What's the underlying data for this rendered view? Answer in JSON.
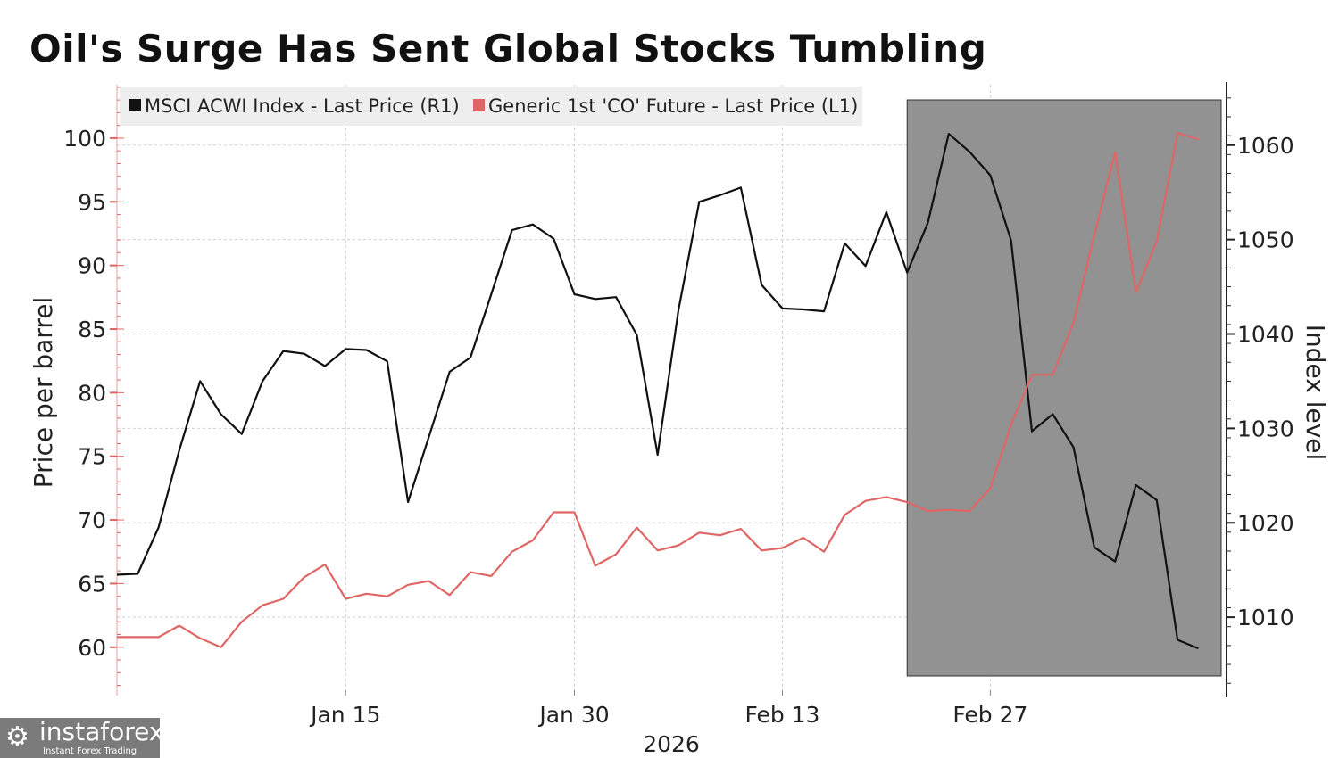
{
  "title": "Oil's Surge Has Sent Global Stocks Tumbling",
  "watermark": {
    "name": "instaforex",
    "tagline": "Instant Forex Trading"
  },
  "chart_data": {
    "type": "line",
    "title": "Oil's Surge Has Sent Global Stocks Tumbling",
    "xlabel": "2026",
    "ylabel_left": "Price per barrel",
    "ylabel_right": "Index level",
    "x_tick_labels": [
      {
        "index": 11,
        "label": "Jan 15"
      },
      {
        "index": 22,
        "label": "Jan 30"
      },
      {
        "index": 32,
        "label": "Feb 13"
      },
      {
        "index": 42,
        "label": "Feb 27"
      }
    ],
    "left_ticks": [
      60,
      65,
      70,
      75,
      80,
      85,
      90,
      95,
      100
    ],
    "right_ticks": [
      1010,
      1020,
      1030,
      1040,
      1050,
      1060
    ],
    "left_range": [
      56.2,
      104.2
    ],
    "right_range": [
      1001.7,
      1066.4
    ],
    "x_range": [
      0,
      53.1
    ],
    "shaded_from_index": 38,
    "legend_position": "top-left",
    "series": [
      {
        "name": "MSCI ACWI Index - Last Price (R1)",
        "axis": "right",
        "color": "#111111",
        "values": [
          1014.5,
          1014.6,
          1019.5,
          1027.7,
          1035.0,
          1031.5,
          1029.4,
          1035.0,
          1038.2,
          1037.9,
          1036.6,
          1038.4,
          1038.3,
          1037.1,
          1022.2,
          1029.1,
          1036.0,
          1037.5,
          1044.2,
          1051.0,
          1051.6,
          1050.1,
          1044.2,
          1043.7,
          1043.9,
          1039.9,
          1027.2,
          1042.5,
          1054.0,
          1054.7,
          1055.5,
          1045.2,
          1042.7,
          1042.6,
          1042.4,
          1049.6,
          1047.2,
          1052.9,
          1046.5,
          1051.8,
          1061.2,
          1059.3,
          1056.8,
          1049.9,
          1029.7,
          1031.5,
          1028.0,
          1017.4,
          1015.9,
          1024.0,
          1022.4,
          1007.6,
          1006.7
        ]
      },
      {
        "name": "Generic 1st 'CO' Future - Last Price (L1)",
        "axis": "left",
        "color": "#e06666",
        "values": [
          60.8,
          60.8,
          60.8,
          61.7,
          60.7,
          60.0,
          62.0,
          63.3,
          63.8,
          65.5,
          66.5,
          63.8,
          64.2,
          64.0,
          64.9,
          65.2,
          64.1,
          65.9,
          65.6,
          67.5,
          68.4,
          70.6,
          70.6,
          66.4,
          67.3,
          69.4,
          67.6,
          68.0,
          69.0,
          68.8,
          69.3,
          67.6,
          67.8,
          68.6,
          67.5,
          70.4,
          71.5,
          71.8,
          71.4,
          70.7,
          70.8,
          70.7,
          72.5,
          77.5,
          81.4,
          81.4,
          85.5,
          92.4,
          98.9,
          87.9,
          91.9,
          100.4,
          99.9
        ]
      }
    ]
  }
}
